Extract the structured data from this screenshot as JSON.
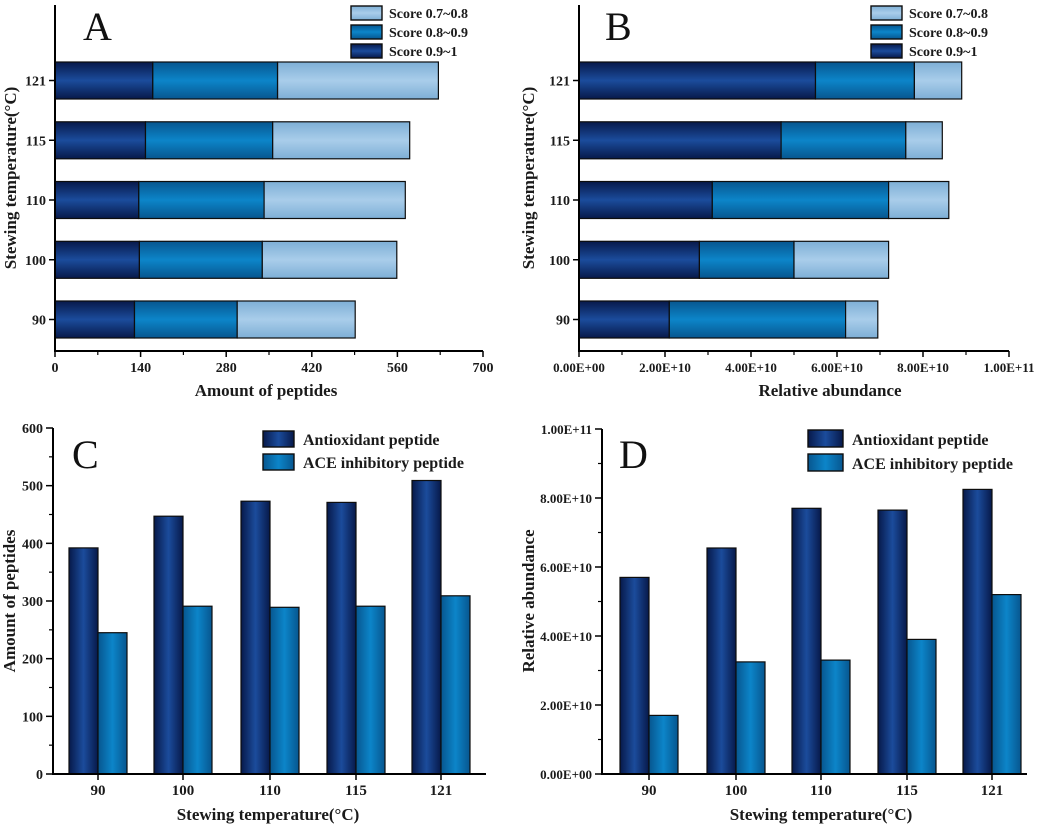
{
  "palette": {
    "dark_blue": {
      "edge": "#07194A",
      "mid": "#1B4C9C"
    },
    "medium_blue": {
      "edge": "#07568F",
      "mid": "#0C85C9"
    },
    "light_blue": {
      "edge": "#7EAFD6",
      "mid": "#A9CDEA"
    },
    "text": "#1a1a1a",
    "axis": "#000000",
    "background": "#ffffff"
  },
  "chart_data": [
    {
      "id": "A",
      "type": "stacked_bar_horizontal",
      "panel_label": "A",
      "xlabel": "Amount of peptides",
      "ylabel": "Stewing temperature(°C)",
      "categories": [
        "90",
        "100",
        "110",
        "115",
        "121"
      ],
      "xlim": [
        0,
        700
      ],
      "x_ticks": [
        0,
        140,
        280,
        420,
        560,
        700
      ],
      "x_tick_labels": [
        "0",
        "140",
        "280",
        "420",
        "560",
        "700"
      ],
      "legend": [
        {
          "label": "Score 0.7~0.8",
          "color": "light_blue"
        },
        {
          "label": "Score 0.8~0.9",
          "color": "medium_blue"
        },
        {
          "label": "Score 0.9~1",
          "color": "dark_blue"
        }
      ],
      "series": [
        {
          "name": "Score 0.9~1",
          "color": "dark_blue",
          "values": [
            130,
            138,
            137,
            148,
            160
          ]
        },
        {
          "name": "Score 0.8~0.9",
          "color": "medium_blue",
          "values": [
            168,
            201,
            205,
            208,
            204
          ]
        },
        {
          "name": "Score 0.7~0.8",
          "color": "light_blue",
          "values": [
            193,
            220,
            231,
            224,
            263
          ]
        }
      ]
    },
    {
      "id": "B",
      "type": "stacked_bar_horizontal",
      "panel_label": "B",
      "xlabel": "Relative abundance",
      "ylabel": "Stewing temperature(°C)",
      "categories": [
        "90",
        "100",
        "110",
        "115",
        "121"
      ],
      "xlim": [
        0,
        100000000000.0
      ],
      "x_ticks": [
        0,
        20000000000.0,
        40000000000.0,
        60000000000.0,
        80000000000.0,
        100000000000.0
      ],
      "x_tick_labels": [
        "0.00E+00",
        "2.00E+10",
        "4.00E+10",
        "6.00E+10",
        "8.00E+10",
        "1.00E+11"
      ],
      "legend": [
        {
          "label": "Score 0.7~0.8",
          "color": "light_blue"
        },
        {
          "label": "Score 0.8~0.9",
          "color": "medium_blue"
        },
        {
          "label": "Score 0.9~1",
          "color": "dark_blue"
        }
      ],
      "series": [
        {
          "name": "Score 0.9~1",
          "color": "dark_blue",
          "values": [
            21000000000.0,
            28000000000.0,
            31000000000.0,
            47000000000.0,
            55000000000.0
          ]
        },
        {
          "name": "Score 0.8~0.9",
          "color": "medium_blue",
          "values": [
            41000000000.0,
            22000000000.0,
            41000000000.0,
            29000000000.0,
            23000000000.0
          ]
        },
        {
          "name": "Score 0.7~0.8",
          "color": "light_blue",
          "values": [
            7500000000.0,
            22000000000.0,
            14000000000.0,
            8500000000.0,
            11000000000.0
          ]
        }
      ]
    },
    {
      "id": "C",
      "type": "grouped_bar_vertical",
      "panel_label": "C",
      "xlabel": "Stewing temperature(°C)",
      "ylabel": "Amount of peptides",
      "categories": [
        "90",
        "100",
        "110",
        "115",
        "121"
      ],
      "ylim": [
        0,
        600
      ],
      "y_ticks": [
        0,
        100,
        200,
        300,
        400,
        500,
        600
      ],
      "y_tick_labels": [
        "0",
        "100",
        "200",
        "300",
        "400",
        "500",
        "600"
      ],
      "legend": [
        {
          "label": "Antioxidant peptide",
          "color": "dark_blue"
        },
        {
          "label": "ACE inhibitory peptide",
          "color": "medium_blue"
        }
      ],
      "series": [
        {
          "name": "Antioxidant peptide",
          "color": "dark_blue",
          "values": [
            392,
            447,
            473,
            471,
            509
          ]
        },
        {
          "name": "ACE inhibitory peptide",
          "color": "medium_blue",
          "values": [
            245,
            291,
            289,
            291,
            309
          ]
        }
      ]
    },
    {
      "id": "D",
      "type": "grouped_bar_vertical",
      "panel_label": "D",
      "xlabel": "Stewing temperature(°C)",
      "ylabel": "Relative abundance",
      "categories": [
        "90",
        "100",
        "110",
        "115",
        "121"
      ],
      "ylim": [
        0,
        100000000000.0
      ],
      "y_ticks": [
        0,
        20000000000.0,
        40000000000.0,
        60000000000.0,
        80000000000.0,
        100000000000.0
      ],
      "y_tick_labels": [
        "0.00E+00",
        "2.00E+10",
        "4.00E+10",
        "6.00E+10",
        "8.00E+10",
        "1.00E+11"
      ],
      "legend": [
        {
          "label": "Antioxidant peptide",
          "color": "dark_blue"
        },
        {
          "label": "ACE inhibitory peptide",
          "color": "medium_blue"
        }
      ],
      "series": [
        {
          "name": "Antioxidant peptide",
          "color": "dark_blue",
          "values": [
            57000000000.0,
            65500000000.0,
            77000000000.0,
            76500000000.0,
            82500000000.0
          ]
        },
        {
          "name": "ACE inhibitory peptide",
          "color": "medium_blue",
          "values": [
            17000000000.0,
            32500000000.0,
            33000000000.0,
            39000000000.0,
            52000000000.0
          ]
        }
      ]
    }
  ]
}
